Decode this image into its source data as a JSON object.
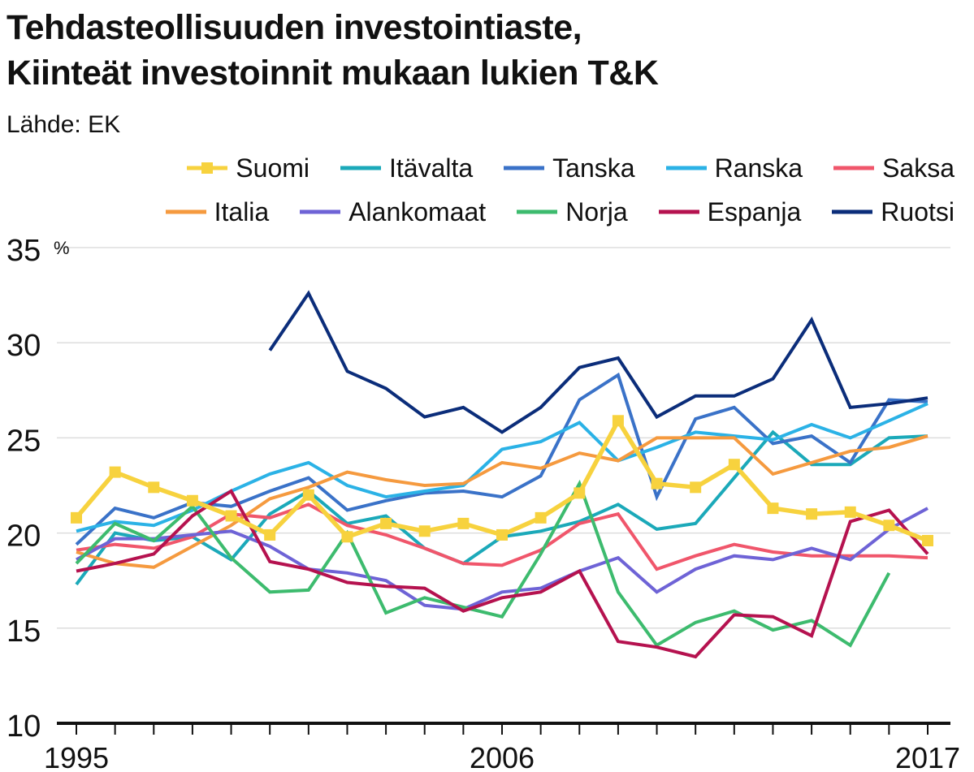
{
  "title_line1": "Tehdasteollisuuden investointiaste,",
  "title_line2": "Kiinteät investoinnit mukaan lukien T&K",
  "source": "Lähde: EK",
  "chart_data": {
    "type": "line",
    "unit": "%",
    "ylim": [
      10,
      35
    ],
    "yticks": [
      10,
      15,
      20,
      25,
      30,
      35
    ],
    "x": [
      1995,
      1996,
      1997,
      1998,
      1999,
      2000,
      2001,
      2002,
      2003,
      2004,
      2005,
      2006,
      2007,
      2008,
      2009,
      2010,
      2011,
      2012,
      2013,
      2014,
      2015,
      2016,
      2017
    ],
    "xtick_labels": [
      "1995",
      "2006",
      "2017"
    ],
    "grid": true,
    "legend_position": "top-right",
    "series": [
      {
        "name": "Suomi",
        "color": "#f7d23e",
        "marker": "square",
        "values": [
          20.8,
          23.2,
          22.4,
          21.7,
          20.9,
          19.9,
          22.0,
          19.8,
          20.5,
          20.1,
          20.5,
          19.9,
          20.8,
          22.1,
          25.9,
          22.6,
          22.4,
          23.6,
          21.3,
          21.0,
          21.1,
          20.4,
          19.6
        ]
      },
      {
        "name": "Itävalta",
        "color": "#1ba9b9",
        "values": [
          17.3,
          20.0,
          19.6,
          19.8,
          18.6,
          21.0,
          22.2,
          20.5,
          20.9,
          19.2,
          18.4,
          19.8,
          20.1,
          20.6,
          21.5,
          20.2,
          20.5,
          22.9,
          25.3,
          23.6,
          23.6,
          25.0,
          25.1
        ]
      },
      {
        "name": "Tanska",
        "color": "#3a72c8",
        "values": [
          19.4,
          21.3,
          20.8,
          21.6,
          21.4,
          22.2,
          22.9,
          21.2,
          21.7,
          22.1,
          22.2,
          21.9,
          23.0,
          27.0,
          28.3,
          21.9,
          26.0,
          26.6,
          24.7,
          25.1,
          23.7,
          27.0,
          26.9
        ]
      },
      {
        "name": "Ranska",
        "color": "#2bb2e6",
        "values": [
          20.1,
          20.6,
          20.4,
          21.2,
          22.2,
          23.1,
          23.7,
          22.5,
          21.9,
          22.2,
          22.5,
          24.4,
          24.8,
          25.8,
          23.8,
          24.5,
          25.3,
          25.1,
          24.9,
          25.7,
          25.0,
          25.9,
          26.8
        ]
      },
      {
        "name": "Saksa",
        "color": "#f0566b",
        "values": [
          19.1,
          19.4,
          19.2,
          19.8,
          21.0,
          20.8,
          21.5,
          20.4,
          19.9,
          19.2,
          18.4,
          18.3,
          19.1,
          20.5,
          21.0,
          18.1,
          18.8,
          19.4,
          19.0,
          18.8,
          18.8,
          18.8,
          18.7
        ]
      },
      {
        "name": "Italia",
        "color": "#f59a3f",
        "values": [
          19.0,
          18.4,
          18.2,
          19.3,
          20.4,
          21.8,
          22.4,
          23.2,
          22.8,
          22.5,
          22.6,
          23.7,
          23.4,
          24.2,
          23.8,
          25.0,
          25.0,
          25.0,
          23.1,
          23.7,
          24.3,
          24.5,
          25.1
        ]
      },
      {
        "name": "Alankomaat",
        "color": "#6e63d6",
        "values": [
          18.6,
          19.7,
          19.7,
          19.9,
          20.1,
          19.3,
          18.1,
          17.9,
          17.5,
          16.2,
          16.0,
          16.9,
          17.1,
          18.0,
          18.7,
          16.9,
          18.1,
          18.8,
          18.6,
          19.2,
          18.6,
          20.2,
          21.3
        ]
      },
      {
        "name": "Norja",
        "color": "#3dbb6e",
        "values": [
          18.4,
          20.5,
          19.6,
          21.4,
          18.7,
          16.9,
          17.0,
          20.0,
          15.8,
          16.6,
          16.1,
          15.6,
          18.9,
          22.6,
          16.9,
          14.1,
          15.3,
          15.9,
          14.9,
          15.4,
          14.1,
          17.9,
          null
        ]
      },
      {
        "name": "Espanja",
        "color": "#b5124f",
        "values": [
          18.0,
          18.4,
          18.9,
          20.9,
          22.2,
          18.5,
          18.1,
          17.4,
          17.2,
          17.1,
          15.9,
          16.6,
          16.9,
          18.0,
          14.3,
          14.0,
          13.5,
          15.7,
          15.6,
          14.6,
          20.6,
          21.2,
          18.9
        ]
      },
      {
        "name": "Ruotsi",
        "color": "#0b2d7a",
        "values": [
          null,
          null,
          null,
          null,
          null,
          29.6,
          32.6,
          28.5,
          27.6,
          26.1,
          26.6,
          25.3,
          26.6,
          28.7,
          29.2,
          26.1,
          27.2,
          27.2,
          28.1,
          31.2,
          26.6,
          26.8,
          27.1
        ]
      }
    ]
  }
}
